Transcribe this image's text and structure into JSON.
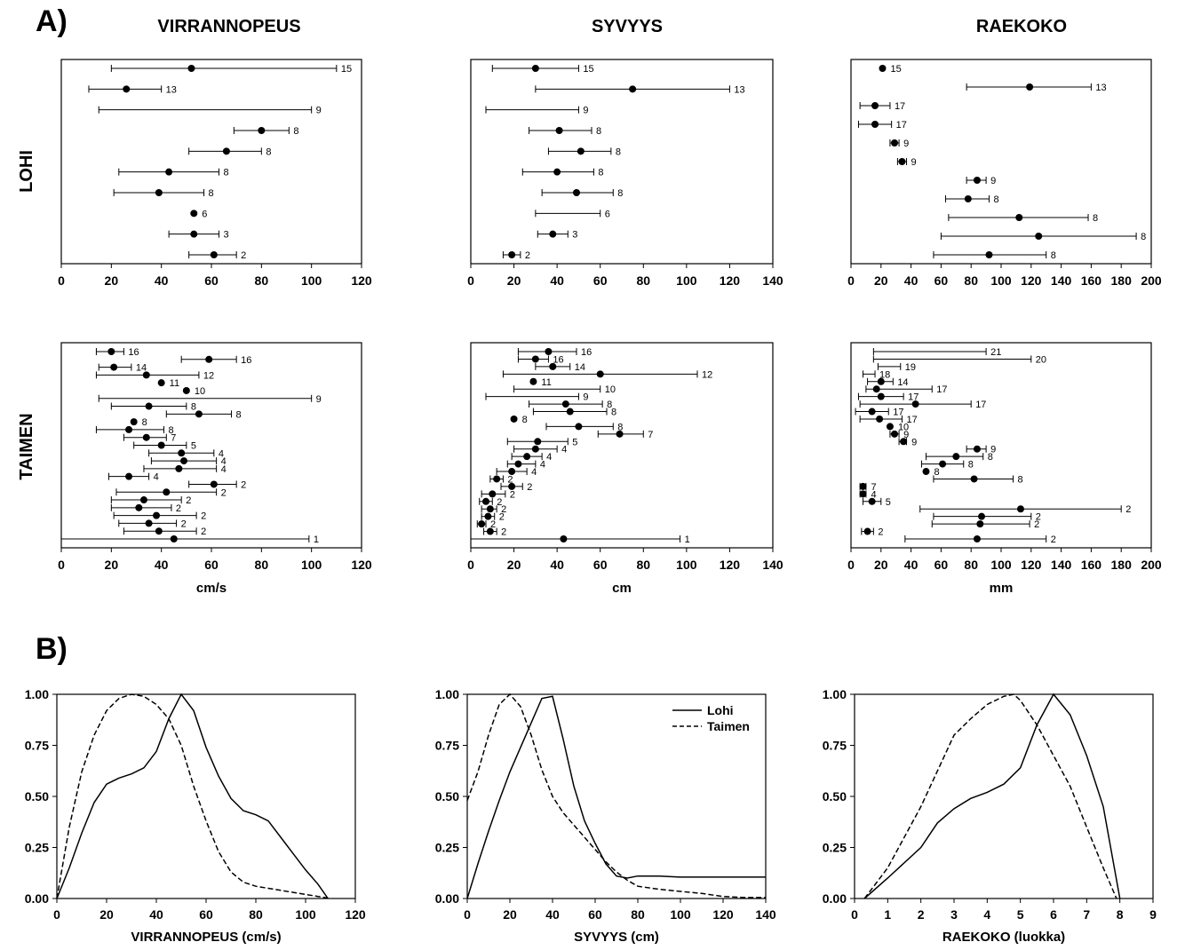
{
  "panel_labels": {
    "a": "A)",
    "b": "B)"
  },
  "col_titles": [
    "VIRRANNOPEUS",
    "SYVYYS",
    "RAEKOKO"
  ],
  "row_titles": [
    "LOHI",
    "TAIMEN"
  ],
  "units": [
    "cm/s",
    "cm",
    "mm"
  ],
  "legend": {
    "solid": "Lohi",
    "dashed": "Taimen"
  },
  "chart_data": [
    {
      "type": "scatter",
      "panel": "A",
      "species": "LOHI",
      "variable": "VIRRANNOPEUS",
      "xlim": [
        0,
        120
      ],
      "xticks": [
        0,
        20,
        40,
        60,
        80,
        100,
        120
      ],
      "xlabel": "",
      "points": [
        {
          "mean": 52,
          "lo": 20,
          "hi": 110,
          "n": "15"
        },
        {
          "mean": 26,
          "lo": 11,
          "hi": 40,
          "n": "13"
        },
        {
          "mean": null,
          "lo": 15,
          "hi": 100,
          "n": "9"
        },
        {
          "mean": 80,
          "lo": 69,
          "hi": 91,
          "n": "8"
        },
        {
          "mean": 66,
          "lo": 51,
          "hi": 80,
          "n": "8"
        },
        {
          "mean": 43,
          "lo": 23,
          "hi": 63,
          "n": "8"
        },
        {
          "mean": 39,
          "lo": 21,
          "hi": 57,
          "n": "8"
        },
        {
          "mean": 53,
          "lo": null,
          "hi": null,
          "n": "6"
        },
        {
          "mean": 53,
          "lo": 43,
          "hi": 63,
          "n": "3"
        },
        {
          "mean": 61,
          "lo": 51,
          "hi": 70,
          "n": "2"
        }
      ]
    },
    {
      "type": "scatter",
      "panel": "A",
      "species": "LOHI",
      "variable": "SYVYYS",
      "xlim": [
        0,
        140
      ],
      "xticks": [
        0,
        20,
        40,
        60,
        80,
        100,
        120,
        140
      ],
      "xlabel": "",
      "points": [
        {
          "mean": 30,
          "lo": 10,
          "hi": 50,
          "n": "15"
        },
        {
          "mean": 75,
          "lo": 30,
          "hi": 120,
          "n": "13"
        },
        {
          "mean": null,
          "lo": 7,
          "hi": 50,
          "n": "9"
        },
        {
          "mean": 41,
          "lo": 27,
          "hi": 56,
          "n": "8"
        },
        {
          "mean": 51,
          "lo": 36,
          "hi": 65,
          "n": "8"
        },
        {
          "mean": 40,
          "lo": 24,
          "hi": 57,
          "n": "8"
        },
        {
          "mean": 49,
          "lo": 33,
          "hi": 66,
          "n": "8"
        },
        {
          "mean": null,
          "lo": 30,
          "hi": 60,
          "n": "6"
        },
        {
          "mean": 38,
          "lo": 31,
          "hi": 45,
          "n": "3"
        },
        {
          "mean": 19,
          "lo": 15,
          "hi": 23,
          "n": "2"
        }
      ]
    },
    {
      "type": "scatter",
      "panel": "A",
      "species": "LOHI",
      "variable": "RAEKOKO",
      "xlim": [
        0,
        200
      ],
      "xticks": [
        0,
        20,
        40,
        60,
        80,
        100,
        120,
        140,
        160,
        180,
        200
      ],
      "xlabel": "",
      "points": [
        {
          "mean": 21,
          "lo": null,
          "hi": null,
          "n": "15"
        },
        {
          "mean": 119,
          "lo": 77,
          "hi": 160,
          "n": "13"
        },
        {
          "mean": 16,
          "lo": 6,
          "hi": 26,
          "n": "17"
        },
        {
          "mean": 16,
          "lo": 5,
          "hi": 27,
          "n": "17"
        },
        {
          "mean": 29,
          "lo": 26,
          "hi": 32,
          "n": "9"
        },
        {
          "mean": 34,
          "lo": 31,
          "hi": 37,
          "n": "9"
        },
        {
          "mean": 84,
          "lo": 77,
          "hi": 90,
          "n": "9"
        },
        {
          "mean": 78,
          "lo": 63,
          "hi": 92,
          "n": "8"
        },
        {
          "mean": 112,
          "lo": 65,
          "hi": 158,
          "n": "8"
        },
        {
          "mean": 125,
          "lo": 60,
          "hi": 190,
          "n": "8"
        },
        {
          "mean": 92,
          "lo": 55,
          "hi": 130,
          "n": "8"
        }
      ]
    },
    {
      "type": "scatter",
      "panel": "A",
      "species": "TAIMEN",
      "variable": "VIRRANNOPEUS",
      "xlim": [
        0,
        120
      ],
      "xticks": [
        0,
        20,
        40,
        60,
        80,
        100,
        120
      ],
      "xlabel": "cm/s",
      "points": [
        {
          "mean": 20,
          "lo": 14,
          "hi": 25,
          "n": "16"
        },
        {
          "mean": 59,
          "lo": 48,
          "hi": 70,
          "n": "16"
        },
        {
          "mean": 21,
          "lo": 15,
          "hi": 28,
          "n": "14"
        },
        {
          "mean": 34,
          "lo": 14,
          "hi": 55,
          "n": "12"
        },
        {
          "mean": 40,
          "lo": null,
          "hi": null,
          "n": "11"
        },
        {
          "mean": 50,
          "lo": null,
          "hi": null,
          "n": "10"
        },
        {
          "mean": null,
          "lo": 15,
          "hi": 100,
          "n": "9"
        },
        {
          "mean": 35,
          "lo": 20,
          "hi": 50,
          "n": "8"
        },
        {
          "mean": 55,
          "lo": 42,
          "hi": 68,
          "n": "8"
        },
        {
          "mean": 29,
          "lo": null,
          "hi": null,
          "n": "8"
        },
        {
          "mean": 27,
          "lo": 14,
          "hi": 41,
          "n": "8"
        },
        {
          "mean": 34,
          "lo": 25,
          "hi": 42,
          "n": "7"
        },
        {
          "mean": 40,
          "lo": 29,
          "hi": 50,
          "n": "5"
        },
        {
          "mean": 48,
          "lo": 35,
          "hi": 61,
          "n": "4"
        },
        {
          "mean": 49,
          "lo": 36,
          "hi": 62,
          "n": "4"
        },
        {
          "mean": 47,
          "lo": 33,
          "hi": 62,
          "n": "4"
        },
        {
          "mean": 27,
          "lo": 19,
          "hi": 35,
          "n": "4"
        },
        {
          "mean": 61,
          "lo": 51,
          "hi": 70,
          "n": "2"
        },
        {
          "mean": 42,
          "lo": 22,
          "hi": 62,
          "n": "2"
        },
        {
          "mean": 33,
          "lo": 20,
          "hi": 48,
          "n": "2"
        },
        {
          "mean": 31,
          "lo": 20,
          "hi": 44,
          "n": "2"
        },
        {
          "mean": 38,
          "lo": 21,
          "hi": 54,
          "n": "2"
        },
        {
          "mean": 35,
          "lo": 23,
          "hi": 46,
          "n": "2"
        },
        {
          "mean": 39,
          "lo": 25,
          "hi": 54,
          "n": "2"
        },
        {
          "mean": 45,
          "lo": 0,
          "hi": 99,
          "n": "1"
        }
      ]
    },
    {
      "type": "scatter",
      "panel": "A",
      "species": "TAIMEN",
      "variable": "SYVYYS",
      "xlim": [
        0,
        140
      ],
      "xticks": [
        0,
        20,
        40,
        60,
        80,
        100,
        120,
        140
      ],
      "xlabel": "cm",
      "points": [
        {
          "mean": 36,
          "lo": 22,
          "hi": 49,
          "n": "16"
        },
        {
          "mean": 30,
          "lo": 22,
          "hi": 36,
          "n": "16"
        },
        {
          "mean": 38,
          "lo": 30,
          "hi": 46,
          "n": "14"
        },
        {
          "mean": 60,
          "lo": 15,
          "hi": 105,
          "n": "12"
        },
        {
          "mean": 29,
          "lo": null,
          "hi": null,
          "n": "11"
        },
        {
          "mean": null,
          "lo": 20,
          "hi": 60,
          "n": "10"
        },
        {
          "mean": null,
          "lo": 7,
          "hi": 50,
          "n": "9"
        },
        {
          "mean": 44,
          "lo": 27,
          "hi": 61,
          "n": "8"
        },
        {
          "mean": 46,
          "lo": 29,
          "hi": 63,
          "n": "8"
        },
        {
          "mean": 20,
          "lo": null,
          "hi": null,
          "n": "8"
        },
        {
          "mean": 50,
          "lo": 35,
          "hi": 66,
          "n": "8"
        },
        {
          "mean": 69,
          "lo": 59,
          "hi": 80,
          "n": "7"
        },
        {
          "mean": 31,
          "lo": 17,
          "hi": 45,
          "n": "5"
        },
        {
          "mean": 30,
          "lo": 20,
          "hi": 40,
          "n": "4"
        },
        {
          "mean": 26,
          "lo": 19,
          "hi": 33,
          "n": "4"
        },
        {
          "mean": 22,
          "lo": 17,
          "hi": 30,
          "n": "4"
        },
        {
          "mean": 19,
          "lo": 12,
          "hi": 26,
          "n": "4"
        },
        {
          "mean": 12,
          "lo": 9,
          "hi": 15,
          "n": "2"
        },
        {
          "mean": 19,
          "lo": 14,
          "hi": 24,
          "n": "2"
        },
        {
          "mean": 10,
          "lo": 5,
          "hi": 16,
          "n": "2"
        },
        {
          "mean": 7,
          "lo": 4,
          "hi": 10,
          "n": "2"
        },
        {
          "mean": 9,
          "lo": 5,
          "hi": 12,
          "n": "2"
        },
        {
          "mean": 8,
          "lo": 5,
          "hi": 11,
          "n": "2"
        },
        {
          "mean": 5,
          "lo": 3,
          "hi": 7,
          "n": "2"
        },
        {
          "mean": 9,
          "lo": 6,
          "hi": 12,
          "n": "2"
        },
        {
          "mean": 43,
          "lo": 0,
          "hi": 97,
          "n": "1"
        }
      ]
    },
    {
      "type": "scatter",
      "panel": "A",
      "species": "TAIMEN",
      "variable": "RAEKOKO",
      "xlim": [
        0,
        200
      ],
      "xticks": [
        0,
        20,
        40,
        60,
        80,
        100,
        120,
        140,
        160,
        180,
        200
      ],
      "xlabel": "mm",
      "points": [
        {
          "mean": null,
          "lo": 15,
          "hi": 90,
          "n": "21"
        },
        {
          "mean": null,
          "lo": 15,
          "hi": 120,
          "n": "20"
        },
        {
          "mean": null,
          "lo": 18,
          "hi": 33,
          "n": "19"
        },
        {
          "mean": null,
          "lo": 8,
          "hi": 16,
          "n": "18"
        },
        {
          "mean": 20,
          "lo": 11,
          "hi": 28,
          "n": "14"
        },
        {
          "mean": 17,
          "lo": 10,
          "hi": 54,
          "n": "17"
        },
        {
          "mean": 20,
          "lo": 5,
          "hi": 35,
          "n": "17"
        },
        {
          "mean": 43,
          "lo": 6,
          "hi": 80,
          "n": "17"
        },
        {
          "mean": 14,
          "lo": 3,
          "hi": 25,
          "n": "17"
        },
        {
          "mean": 19,
          "lo": 6,
          "hi": 34,
          "n": "17"
        },
        {
          "mean": 26,
          "lo": null,
          "hi": null,
          "n": "10"
        },
        {
          "mean": 29,
          "lo": 26,
          "hi": 32,
          "n": "9"
        },
        {
          "mean": 35,
          "lo": 32,
          "hi": 37,
          "n": "9"
        },
        {
          "mean": 84,
          "lo": 77,
          "hi": 90,
          "n": "9"
        },
        {
          "mean": 70,
          "lo": 50,
          "hi": 88,
          "n": "8"
        },
        {
          "mean": 61,
          "lo": 47,
          "hi": 75,
          "n": "8"
        },
        {
          "mean": 50,
          "lo": null,
          "hi": null,
          "n": "8"
        },
        {
          "mean": 82,
          "lo": 55,
          "hi": 108,
          "n": "8"
        },
        {
          "mean": 8,
          "lo": 6,
          "hi": 10,
          "n": "7"
        },
        {
          "mean": 8,
          "lo": 6,
          "hi": 10,
          "n": "4"
        },
        {
          "mean": 14,
          "lo": 8,
          "hi": 20,
          "n": "5"
        },
        {
          "mean": 113,
          "lo": 46,
          "hi": 180,
          "n": "2"
        },
        {
          "mean": 87,
          "lo": 55,
          "hi": 120,
          "n": "2"
        },
        {
          "mean": 86,
          "lo": 54,
          "hi": 119,
          "n": "2"
        },
        {
          "mean": 11,
          "lo": 7,
          "hi": 15,
          "n": "2"
        },
        {
          "mean": 84,
          "lo": 36,
          "hi": 130,
          "n": "2"
        }
      ]
    },
    {
      "type": "line",
      "panel": "B",
      "variable": "VIRRANNOPEUS",
      "xlabel": "VIRRANNOPEUS (cm/s)",
      "xlim": [
        0,
        120
      ],
      "ylim": [
        0,
        1
      ],
      "xticks": [
        0,
        20,
        40,
        60,
        80,
        100,
        120
      ],
      "yticks": [
        "0.00",
        "0.25",
        "0.50",
        "0.75",
        "1.00"
      ],
      "series": [
        {
          "name": "Lohi",
          "style": "solid",
          "x": [
            0,
            5,
            10,
            15,
            20,
            25,
            30,
            35,
            40,
            45,
            50,
            55,
            60,
            65,
            70,
            75,
            80,
            85,
            90,
            95,
            100,
            105,
            109
          ],
          "y": [
            0,
            0.15,
            0.32,
            0.47,
            0.56,
            0.59,
            0.61,
            0.64,
            0.72,
            0.88,
            1.0,
            0.92,
            0.74,
            0.6,
            0.49,
            0.43,
            0.41,
            0.38,
            0.3,
            0.22,
            0.14,
            0.07,
            0
          ]
        },
        {
          "name": "Taimen",
          "style": "dashed",
          "x": [
            0,
            5,
            10,
            15,
            20,
            25,
            30,
            35,
            40,
            45,
            50,
            55,
            60,
            65,
            70,
            75,
            80,
            85,
            90,
            95,
            100,
            105,
            110
          ],
          "y": [
            0,
            0.35,
            0.62,
            0.8,
            0.92,
            0.98,
            1.0,
            0.99,
            0.95,
            0.88,
            0.75,
            0.55,
            0.38,
            0.23,
            0.13,
            0.08,
            0.06,
            0.05,
            0.04,
            0.03,
            0.02,
            0.01,
            0
          ]
        }
      ]
    },
    {
      "type": "line",
      "panel": "B",
      "variable": "SYVYYS",
      "xlabel": "SYVYYS (cm)",
      "xlim": [
        0,
        140
      ],
      "ylim": [
        0,
        1
      ],
      "xticks": [
        0,
        20,
        40,
        60,
        80,
        100,
        120,
        140
      ],
      "yticks": [
        "0.00",
        "0.25",
        "0.50",
        "0.75",
        "1.00"
      ],
      "series": [
        {
          "name": "Lohi",
          "style": "solid",
          "x": [
            0,
            5,
            10,
            15,
            20,
            25,
            30,
            35,
            40,
            45,
            50,
            55,
            60,
            65,
            70,
            75,
            80,
            90,
            100,
            110,
            120,
            130,
            140
          ],
          "y": [
            0,
            0.17,
            0.33,
            0.48,
            0.62,
            0.74,
            0.86,
            0.98,
            0.99,
            0.78,
            0.55,
            0.38,
            0.27,
            0.17,
            0.11,
            0.1,
            0.11,
            0.11,
            0.105,
            0.105,
            0.105,
            0.105,
            0.105
          ]
        },
        {
          "name": "Taimen",
          "style": "dashed",
          "x": [
            0,
            5,
            10,
            15,
            20,
            25,
            30,
            35,
            40,
            45,
            50,
            55,
            60,
            65,
            70,
            75,
            80,
            90,
            100,
            110,
            120,
            130,
            140
          ],
          "y": [
            0.48,
            0.62,
            0.8,
            0.95,
            1.0,
            0.94,
            0.8,
            0.63,
            0.5,
            0.42,
            0.36,
            0.3,
            0.24,
            0.18,
            0.13,
            0.09,
            0.06,
            0.045,
            0.035,
            0.025,
            0.01,
            0.005,
            0.005
          ]
        }
      ]
    },
    {
      "type": "line",
      "panel": "B",
      "variable": "RAEKOKO",
      "xlabel": "RAEKOKO (luokka)",
      "xlim": [
        0,
        9
      ],
      "ylim": [
        0,
        1
      ],
      "xticks": [
        0,
        1,
        2,
        3,
        4,
        5,
        6,
        7,
        8,
        9
      ],
      "yticks": [
        "0.00",
        "0.25",
        "0.50",
        "0.75",
        "1.00"
      ],
      "series": [
        {
          "name": "Lohi",
          "style": "solid",
          "x": [
            0.3,
            1,
            2,
            2.5,
            3,
            3.5,
            4,
            4.5,
            5,
            5.5,
            6,
            6.5,
            7,
            7.5,
            8
          ],
          "y": [
            0,
            0.1,
            0.25,
            0.37,
            0.44,
            0.49,
            0.52,
            0.56,
            0.64,
            0.85,
            1.0,
            0.9,
            0.7,
            0.45,
            0
          ]
        },
        {
          "name": "Taimen",
          "style": "dashed",
          "x": [
            0.3,
            1,
            2,
            3,
            3.5,
            4,
            4.5,
            4.8,
            5,
            5.5,
            6,
            6.5,
            7,
            7.5,
            7.9
          ],
          "y": [
            0,
            0.15,
            0.45,
            0.8,
            0.88,
            0.95,
            0.99,
            1.0,
            0.97,
            0.85,
            0.7,
            0.55,
            0.35,
            0.15,
            0
          ]
        }
      ]
    }
  ]
}
